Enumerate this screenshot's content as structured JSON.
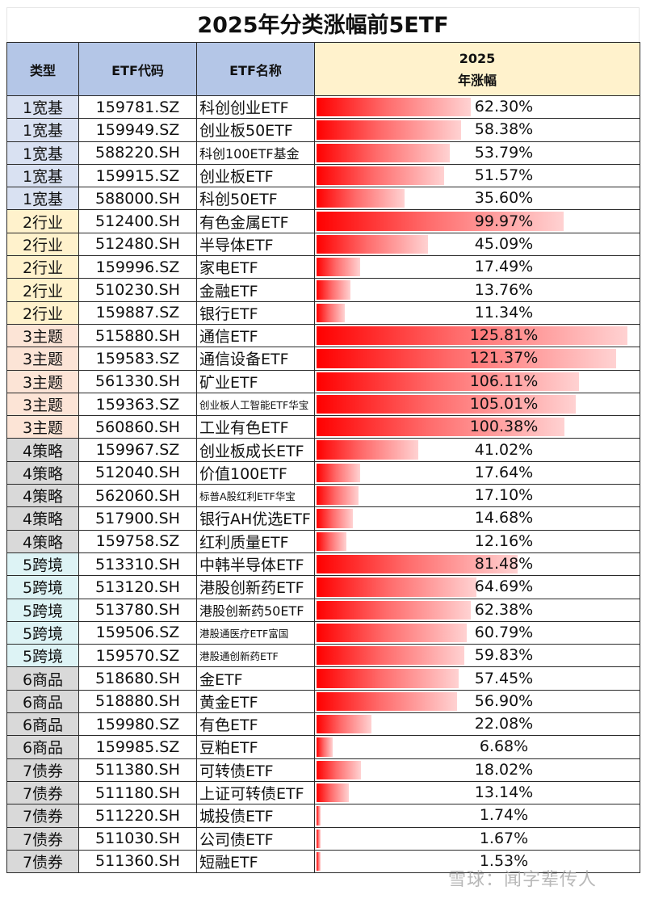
{
  "title": "2025年分类涨幅前5ETF",
  "header": {
    "type": "类型",
    "code": "ETF代码",
    "name": "ETF名称",
    "gain_line1": "2025",
    "gain_line2": "年涨幅"
  },
  "colors": {
    "header_blue": "#b4c6e7",
    "header_yellow": "#fff2cc",
    "bar_start": "#ff0000",
    "bar_end": "#ffd2d2",
    "type_1": "#d9e1f2",
    "type_2": "#fff2cc",
    "type_3": "#fce4d6",
    "type_4": "#d9d9d9",
    "type_5": "#ddf3f5",
    "type_6": "#d9d9d9",
    "type_7": "#d9d9d9"
  },
  "rows": [
    {
      "type": "1宽基",
      "code": "159781.SZ",
      "name": "科创创业ETF",
      "gain": "62.30%"
    },
    {
      "type": "1宽基",
      "code": "159949.SZ",
      "name": "创业板50ETF",
      "gain": "58.38%"
    },
    {
      "type": "1宽基",
      "code": "588220.SH",
      "name": "科创100ETF基金",
      "gain": "53.79%"
    },
    {
      "type": "1宽基",
      "code": "159915.SZ",
      "name": "创业板ETF",
      "gain": "51.57%"
    },
    {
      "type": "1宽基",
      "code": "588000.SH",
      "name": "科创50ETF",
      "gain": "35.60%"
    },
    {
      "type": "2行业",
      "code": "512400.SH",
      "name": "有色金属ETF",
      "gain": "99.97%"
    },
    {
      "type": "2行业",
      "code": "512480.SH",
      "name": "半导体ETF",
      "gain": "45.09%"
    },
    {
      "type": "2行业",
      "code": "159996.SZ",
      "name": "家电ETF",
      "gain": "17.49%"
    },
    {
      "type": "2行业",
      "code": "510230.SH",
      "name": "金融ETF",
      "gain": "13.76%"
    },
    {
      "type": "2行业",
      "code": "159887.SZ",
      "name": "银行ETF",
      "gain": "11.34%"
    },
    {
      "type": "3主题",
      "code": "515880.SH",
      "name": "通信ETF",
      "gain": "125.81%"
    },
    {
      "type": "3主题",
      "code": "159583.SZ",
      "name": "通信设备ETF",
      "gain": "121.37%"
    },
    {
      "type": "3主题",
      "code": "561330.SH",
      "name": "矿业ETF",
      "gain": "106.11%"
    },
    {
      "type": "3主题",
      "code": "159363.SZ",
      "name": "创业板人工智能ETF华宝",
      "gain": "105.01%"
    },
    {
      "type": "3主题",
      "code": "560860.SH",
      "name": "工业有色ETF",
      "gain": "100.38%"
    },
    {
      "type": "4策略",
      "code": "159967.SZ",
      "name": "创业板成长ETF",
      "gain": "41.02%"
    },
    {
      "type": "4策略",
      "code": "512040.SH",
      "name": "价值100ETF",
      "gain": "17.64%"
    },
    {
      "type": "4策略",
      "code": "562060.SH",
      "name": "标普A股红利ETF华宝",
      "gain": "17.10%"
    },
    {
      "type": "4策略",
      "code": "517900.SH",
      "name": "银行AH优选ETF",
      "gain": "14.68%"
    },
    {
      "type": "4策略",
      "code": "159758.SZ",
      "name": "红利质量ETF",
      "gain": "12.16%"
    },
    {
      "type": "5跨境",
      "code": "513310.SH",
      "name": "中韩半导体ETF",
      "gain": "81.48%"
    },
    {
      "type": "5跨境",
      "code": "513120.SH",
      "name": "港股创新药ETF",
      "gain": "64.69%"
    },
    {
      "type": "5跨境",
      "code": "513780.SH",
      "name": "港股创新药50ETF",
      "gain": "62.38%"
    },
    {
      "type": "5跨境",
      "code": "159506.SZ",
      "name": "港股通医疗ETF富国",
      "gain": "60.79%"
    },
    {
      "type": "5跨境",
      "code": "159570.SZ",
      "name": "港股通创新药ETF",
      "gain": "59.83%"
    },
    {
      "type": "6商品",
      "code": "518680.SH",
      "name": "金ETF",
      "gain": "57.45%"
    },
    {
      "type": "6商品",
      "code": "518880.SH",
      "name": "黄金ETF",
      "gain": "56.90%"
    },
    {
      "type": "6商品",
      "code": "159980.SZ",
      "name": "有色ETF",
      "gain": "22.08%"
    },
    {
      "type": "6商品",
      "code": "159985.SZ",
      "name": "豆粕ETF",
      "gain": "6.68%"
    },
    {
      "type": "7债券",
      "code": "511380.SH",
      "name": "可转债ETF",
      "gain": "18.02%"
    },
    {
      "type": "7债券",
      "code": "511180.SH",
      "name": "上证可转债ETF",
      "gain": "13.14%"
    },
    {
      "type": "7债券",
      "code": "511220.SH",
      "name": "城投债ETF",
      "gain": "1.74%"
    },
    {
      "type": "7债券",
      "code": "511030.SH",
      "name": "公司债ETF",
      "gain": "1.67%"
    },
    {
      "type": "7债券",
      "code": "511360.SH",
      "name": "短融ETF",
      "gain": "1.53%"
    }
  ],
  "watermark": "雪球：闻字辈传人",
  "chart_data": {
    "type": "table",
    "title": "2025年分类涨幅前5ETF",
    "columns": [
      "类型",
      "ETF代码",
      "ETF名称",
      "2025年涨幅"
    ],
    "bar_column": "2025年涨幅",
    "bar_max": 125.81,
    "categories": [
      "科创创业ETF",
      "创业板50ETF",
      "科创100ETF基金",
      "创业板ETF",
      "科创50ETF",
      "有色金属ETF",
      "半导体ETF",
      "家电ETF",
      "金融ETF",
      "银行ETF",
      "通信ETF",
      "通信设备ETF",
      "矿业ETF",
      "创业板人工智能ETF华宝",
      "工业有色ETF",
      "创业板成长ETF",
      "价值100ETF",
      "标普A股红利ETF华宝",
      "银行AH优选ETF",
      "红利质量ETF",
      "中韩半导体ETF",
      "港股创新药ETF",
      "港股创新药50ETF",
      "港股通医疗ETF富国",
      "港股通创新药ETF",
      "金ETF",
      "黄金ETF",
      "有色ETF",
      "豆粕ETF",
      "可转债ETF",
      "上证可转债ETF",
      "城投债ETF",
      "公司债ETF",
      "短融ETF"
    ],
    "values": [
      62.3,
      58.38,
      53.79,
      51.57,
      35.6,
      99.97,
      45.09,
      17.49,
      13.76,
      11.34,
      125.81,
      121.37,
      106.11,
      105.01,
      100.38,
      41.02,
      17.64,
      17.1,
      14.68,
      12.16,
      81.48,
      64.69,
      62.38,
      60.79,
      59.83,
      57.45,
      56.9,
      22.08,
      6.68,
      18.02,
      13.14,
      1.74,
      1.67,
      1.53
    ],
    "groups": [
      "1宽基",
      "2行业",
      "3主题",
      "4策略",
      "5跨境",
      "6商品",
      "7债券"
    ],
    "unit": "%"
  }
}
